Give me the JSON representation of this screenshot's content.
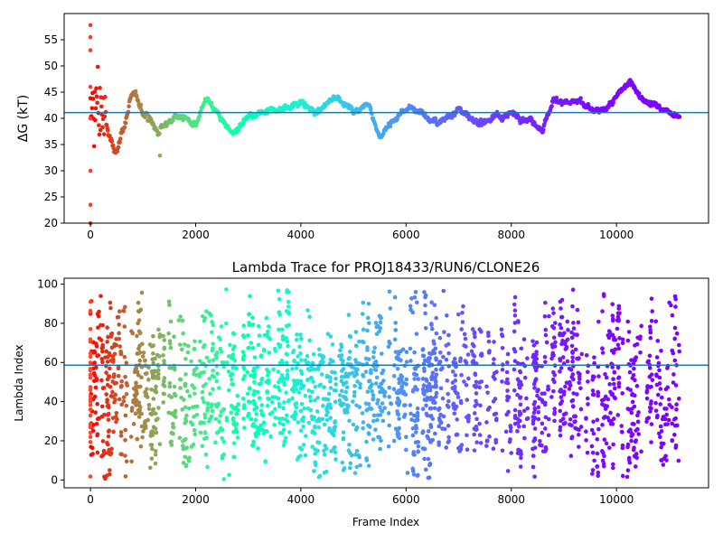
{
  "chart_data": [
    {
      "type": "scatter",
      "title": "",
      "xlabel": "",
      "ylabel": "ΔG (kT)",
      "xlim": [
        -500,
        11750
      ],
      "ylim": [
        20,
        60
      ],
      "xticks": [
        0,
        2000,
        4000,
        6000,
        8000,
        10000
      ],
      "yticks": [
        20,
        25,
        30,
        35,
        40,
        45,
        50,
        55
      ],
      "hline": 41.1,
      "frames": 11200,
      "colormap": "rainbow (red at frame 0 → violet at last frame)",
      "line_color": "#1f77b4",
      "trace_keypoints": {
        "x": [
          0,
          200,
          450,
          800,
          1000,
          1300,
          1600,
          2000,
          2200,
          2400,
          2700,
          3000,
          3300,
          3700,
          4000,
          4300,
          4700,
          5000,
          5300,
          5500,
          5900,
          6100,
          6300,
          6600,
          7000,
          7300,
          7600,
          8000,
          8300,
          8600,
          8800,
          9300,
          9600,
          9800,
          10000,
          10250,
          10500,
          10800,
          11200
        ],
        "y": [
          40,
          42,
          33,
          44,
          42,
          37,
          41,
          39,
          44,
          41,
          37,
          40,
          41,
          42,
          43,
          41,
          44.5,
          41,
          43,
          36.5,
          41,
          42,
          41,
          39,
          42,
          39,
          40,
          41,
          40,
          38,
          43.5,
          43,
          41,
          42,
          44,
          47,
          44,
          42,
          40
        ]
      },
      "grid": false
    },
    {
      "type": "scatter",
      "title": "Lambda Trace for PROJ18433/RUN6/CLONE26",
      "xlabel": "Frame Index",
      "ylabel": "Lambda Index",
      "xlim": [
        -500,
        11750
      ],
      "ylim": [
        -4,
        103
      ],
      "xticks": [
        0,
        2000,
        4000,
        6000,
        8000,
        10000
      ],
      "yticks": [
        0,
        20,
        40,
        60,
        80,
        100
      ],
      "hline": 58.6,
      "lambda_range": [
        0,
        99
      ],
      "frames": 11200,
      "colormap": "rainbow (red at frame 0 → violet at last frame)",
      "line_color": "#1f77b4",
      "grid": false
    }
  ]
}
